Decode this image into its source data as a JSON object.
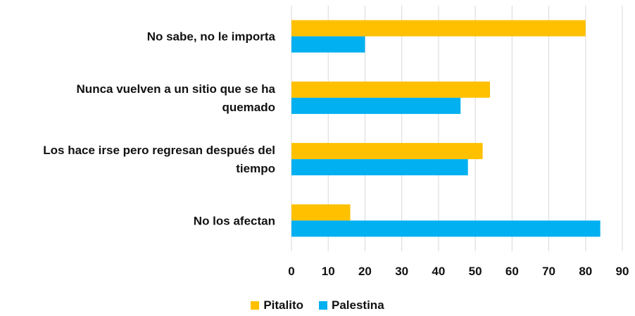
{
  "chart_data": {
    "type": "bar",
    "orientation": "horizontal",
    "categories": [
      [
        "No sabe, no le importa"
      ],
      [
        "Nunca vuelven a un sitio que se ha",
        "quemado"
      ],
      [
        "Los hace irse pero regresan después del",
        "tiempo"
      ],
      [
        "No los afectan"
      ]
    ],
    "series": [
      {
        "name": "Pitalito",
        "color": "#FFC000",
        "values": [
          80,
          54,
          52,
          16
        ]
      },
      {
        "name": "Palestina",
        "color": "#00B0F0",
        "values": [
          20,
          46,
          48,
          84
        ]
      }
    ],
    "xlim": [
      0,
      90
    ],
    "xticks": [
      0,
      10,
      20,
      30,
      40,
      50,
      60,
      70,
      80,
      90
    ],
    "grid": true,
    "legend_position": "bottom"
  }
}
